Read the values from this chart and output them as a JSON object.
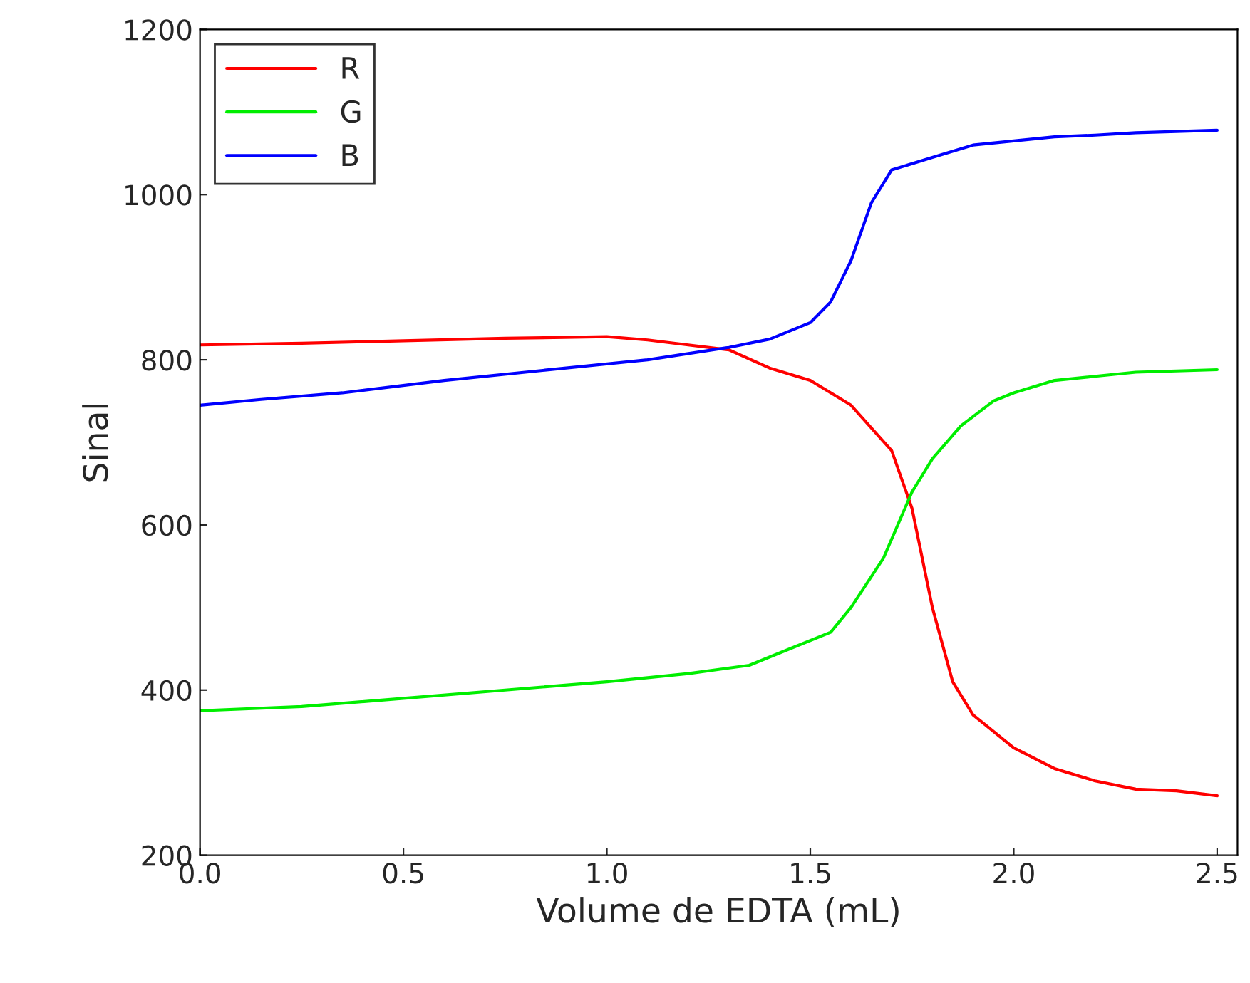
{
  "chart_data": {
    "type": "line",
    "xlabel": "Volume de EDTA (mL)",
    "ylabel": "Sinal",
    "xlim": [
      0,
      2.55
    ],
    "ylim": [
      200,
      1200
    ],
    "xticks": [
      {
        "value": 0,
        "label": "0.0"
      },
      0.5,
      {
        "value": 1,
        "label": "1.0"
      },
      1.5,
      {
        "value": 2,
        "label": "2.0"
      },
      2.5
    ],
    "yticks": [
      200,
      400,
      600,
      800,
      1000,
      1200
    ],
    "grid": false,
    "legend": "top left",
    "series": [
      {
        "name": "R",
        "color": "#ff0000",
        "x": [
          0,
          0.25,
          0.5,
          0.75,
          1.0,
          1.1,
          1.2,
          1.3,
          1.4,
          1.5,
          1.6,
          1.7,
          1.75,
          1.8,
          1.85,
          1.9,
          2.0,
          2.1,
          2.2,
          2.3,
          2.4,
          2.5
        ],
        "values": [
          818,
          820,
          823,
          826,
          828,
          824,
          818,
          812,
          790,
          775,
          745,
          690,
          620,
          500,
          410,
          370,
          330,
          305,
          290,
          280,
          278,
          272
        ]
      },
      {
        "name": "G",
        "color": "#00ee00",
        "x": [
          0,
          0.25,
          0.5,
          0.75,
          1.0,
          1.2,
          1.35,
          1.45,
          1.55,
          1.6,
          1.68,
          1.75,
          1.8,
          1.87,
          1.95,
          2.0,
          2.1,
          2.2,
          2.3,
          2.5
        ],
        "values": [
          375,
          380,
          390,
          400,
          410,
          420,
          430,
          450,
          470,
          500,
          560,
          640,
          680,
          720,
          750,
          760,
          775,
          780,
          785,
          788
        ]
      },
      {
        "name": "B",
        "color": "#0000ff",
        "x": [
          0,
          0.15,
          0.35,
          0.6,
          0.9,
          1.1,
          1.3,
          1.4,
          1.5,
          1.55,
          1.6,
          1.65,
          1.7,
          1.8,
          1.9,
          2.0,
          2.1,
          2.2,
          2.3,
          2.5
        ],
        "values": [
          745,
          752,
          760,
          775,
          790,
          800,
          815,
          825,
          845,
          870,
          920,
          990,
          1030,
          1045,
          1060,
          1065,
          1070,
          1072,
          1075,
          1078
        ]
      }
    ]
  }
}
